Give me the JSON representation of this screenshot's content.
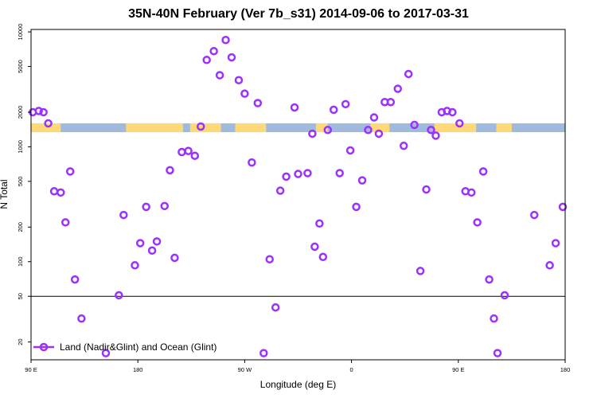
{
  "chart_data": {
    "type": "scatter",
    "title": "35N-40N February (Ver 7b_s31)   2014-09-06 to 2017-03-31",
    "xlabel": "Longitude (deg E)",
    "ylabel": "N Total",
    "x_ticks": [
      {
        "value": -90,
        "label": "90 E"
      },
      {
        "value": 0,
        "label": "180"
      },
      {
        "value": 90,
        "label": "90 W"
      },
      {
        "value": 180,
        "label": "0"
      },
      {
        "value": 270,
        "label": "90 E"
      },
      {
        "value": 360,
        "label": "180"
      }
    ],
    "xlim": [
      -90,
      360
    ],
    "y_scale": "log",
    "ylim": [
      14,
      10500
    ],
    "y_ticks": [
      20,
      50,
      100,
      200,
      500,
      1000,
      2000,
      5000,
      10000
    ],
    "reference_line": 50,
    "grid": false,
    "legend_position": "bottom-left",
    "series": [
      {
        "name": "Land (Nadir&Glint) and Ocean (Glint)",
        "color": "#9b30ff",
        "x": [
          -88.5,
          -83.5,
          -79.5,
          -75.5,
          -70.5,
          -65,
          -61,
          -57,
          -53,
          -47.5,
          -27,
          -16,
          -12,
          -2.5,
          2,
          7,
          12,
          16,
          22.5,
          27,
          31,
          37,
          42.5,
          48,
          53,
          58,
          64,
          69,
          74,
          79,
          85,
          90,
          96,
          101,
          106,
          111,
          116,
          120,
          125,
          132,
          135,
          143,
          147,
          149,
          153,
          156,
          160,
          165,
          170,
          175,
          179,
          184,
          189,
          194,
          199,
          203,
          208,
          213,
          219,
          224,
          228,
          233,
          238,
          243,
          247,
          251,
          256,
          260.5,
          265,
          271,
          276,
          281,
          286,
          291,
          296,
          300,
          303,
          309,
          334,
          347,
          352,
          358
        ],
        "y": [
          2000,
          2050,
          2000,
          1600,
          410,
          400,
          220,
          610,
          70,
          32,
          16,
          51,
          255,
          93,
          145,
          300,
          125,
          150,
          305,
          625,
          108,
          900,
          920,
          835,
          1500,
          5700,
          6800,
          4200,
          8500,
          6000,
          3800,
          2900,
          730,
          2400,
          16,
          105,
          40,
          415,
          550,
          2200,
          580,
          590,
          1300,
          135,
          215,
          110,
          1400,
          2100,
          590,
          2350,
          930,
          300,
          510,
          1400,
          1800,
          1300,
          2450,
          2450,
          3200,
          1020,
          4300,
          1550,
          83,
          425,
          1400,
          1250,
          2000,
          2050,
          2000,
          1600,
          410,
          400,
          220,
          610,
          70,
          32,
          16,
          51,
          255,
          93,
          145,
          300
        ]
      }
    ],
    "band": {
      "y_bottom": 1340,
      "y_top": 1600,
      "land_color": "#ffd978",
      "ocean_color": "#9fbadb"
    }
  }
}
